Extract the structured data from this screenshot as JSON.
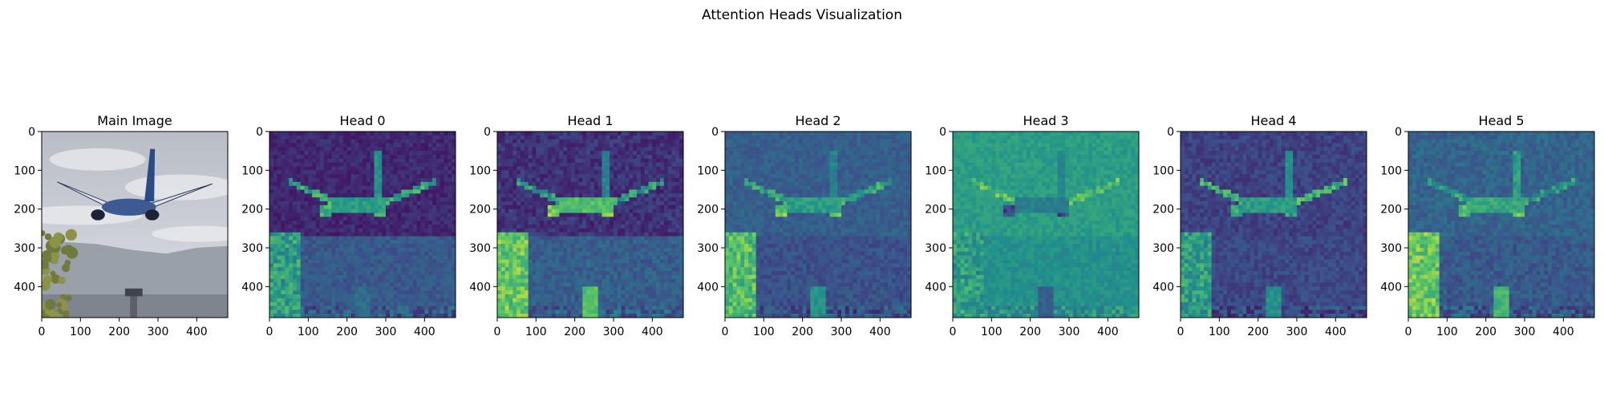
{
  "figure": {
    "suptitle": "Attention Heads Visualization"
  },
  "chart_data": {
    "type": "heatmap",
    "title": "Attention Heads Visualization",
    "panels": [
      {
        "title": "Main Image",
        "kind": "image"
      },
      {
        "title": "Head 0",
        "kind": "heatmap"
      },
      {
        "title": "Head 1",
        "kind": "heatmap"
      },
      {
        "title": "Head 2",
        "kind": "heatmap"
      },
      {
        "title": "Head 3",
        "kind": "heatmap"
      },
      {
        "title": "Head 4",
        "kind": "heatmap"
      },
      {
        "title": "Head 5",
        "kind": "heatmap"
      }
    ],
    "x_ticks": [
      0,
      100,
      200,
      300,
      400
    ],
    "y_ticks": [
      0,
      100,
      200,
      300,
      400
    ],
    "xlim": [
      0,
      480
    ],
    "ylim": [
      480,
      0
    ],
    "colormap": "viridis",
    "grid": false,
    "colors": {
      "sky": "#c9ccd3",
      "mountain": "#9aa0aa",
      "tree": "#6f7a3c",
      "aircraft": "#dde3ee",
      "viridis_dark": "#440154",
      "viridis_mid": "#21918c",
      "viridis_bright": "#fde725"
    }
  }
}
